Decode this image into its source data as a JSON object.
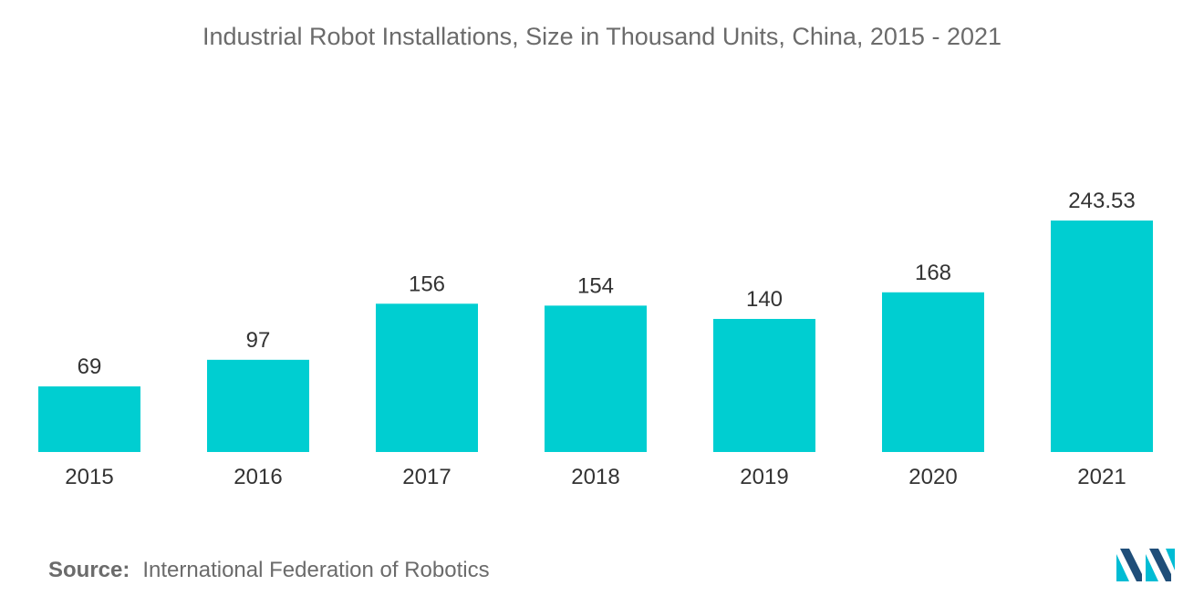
{
  "chart_data": {
    "type": "bar",
    "title": "Industrial Robot Installations, Size in Thousand Units, China, 2015 - 2021",
    "categories": [
      "2015",
      "2016",
      "2017",
      "2018",
      "2019",
      "2020",
      "2021"
    ],
    "values": [
      69,
      97,
      156,
      154,
      140,
      168,
      243.53
    ],
    "value_labels": [
      "69",
      "97",
      "156",
      "154",
      "140",
      "168",
      "243.53"
    ],
    "xlabel": "",
    "ylabel": "",
    "ylim": [
      0,
      243.53
    ],
    "grid": false,
    "bar_color": "#00ced1"
  },
  "source": {
    "label": "Source:",
    "text": "International Federation of Robotics"
  },
  "logo": {
    "icon": "mordor-intelligence-logo-icon",
    "colors": [
      "#1f4e79",
      "#00bcd4"
    ]
  }
}
